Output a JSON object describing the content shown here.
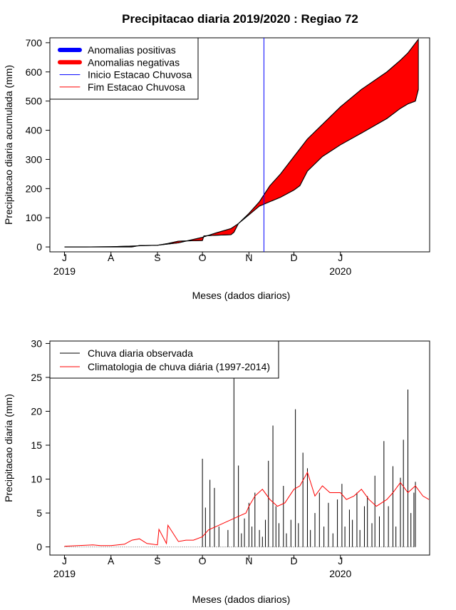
{
  "title": "Precipitacao diaria 2019/2020 : Regiao 72",
  "colors": {
    "positive": "#0000ff",
    "negative": "#ff0000",
    "start_line": "#0000ff",
    "end_line": "#ff0000",
    "obs_bars": "#000000",
    "climatology": "#ff0000"
  },
  "chart_data": [
    {
      "type": "area",
      "ylabel": "Precipitacao diaria acumulada (mm)",
      "xlabel": "Meses (dados diarios)",
      "ylim": [
        0,
        700
      ],
      "yticks": [
        0,
        100,
        200,
        300,
        400,
        500,
        600,
        700
      ],
      "xlim": [
        "2019-07-01",
        "2020-02-29"
      ],
      "xticks": [
        "J",
        "A",
        "S",
        "O",
        "N",
        "D",
        "J"
      ],
      "xtick_dates": [
        "2019-07-01",
        "2019-08-01",
        "2019-09-01",
        "2019-10-01",
        "2019-11-01",
        "2019-12-01",
        "2020-01-01"
      ],
      "year_labels": [
        {
          "text": "2019",
          "date": "2019-07-01"
        },
        {
          "text": "2020",
          "date": "2020-01-01"
        }
      ],
      "legend": {
        "position": "top-left",
        "entries": [
          "Anomalias positivas",
          "Anomalias negativas",
          "Inicio Estacao Chuvosa",
          "Fim Estacao Chuvosa"
        ]
      },
      "onset_date": "2019-11-11",
      "series": [
        {
          "name": "Climatologia acumulada",
          "dates": [
            "2019-07-01",
            "2019-07-15",
            "2019-08-01",
            "2019-08-15",
            "2019-09-01",
            "2019-09-15",
            "2019-10-01",
            "2019-10-10",
            "2019-10-20",
            "2019-10-25",
            "2019-11-01",
            "2019-11-08",
            "2019-11-15",
            "2019-11-22",
            "2019-12-01",
            "2019-12-10",
            "2019-12-20",
            "2020-01-01",
            "2020-01-15",
            "2020-02-01",
            "2020-02-10",
            "2020-02-15",
            "2020-02-22"
          ],
          "values": [
            0,
            0,
            1,
            3,
            6,
            14,
            33,
            48,
            63,
            80,
            115,
            155,
            210,
            250,
            310,
            370,
            420,
            480,
            540,
            600,
            640,
            665,
            712
          ]
        },
        {
          "name": "Chuva observada acumulada",
          "dates": [
            "2019-07-01",
            "2019-07-15",
            "2019-08-01",
            "2019-08-15",
            "2019-08-20",
            "2019-09-01",
            "2019-09-08",
            "2019-09-15",
            "2019-10-01",
            "2019-10-02",
            "2019-10-10",
            "2019-10-20",
            "2019-10-22",
            "2019-10-25",
            "2019-11-01",
            "2019-11-08",
            "2019-11-15",
            "2019-11-22",
            "2019-12-01",
            "2019-12-05",
            "2019-12-10",
            "2019-12-20",
            "2020-01-01",
            "2020-01-15",
            "2020-02-01",
            "2020-02-10",
            "2020-02-15",
            "2020-02-20",
            "2020-02-22"
          ],
          "values": [
            0,
            0,
            0,
            0,
            5,
            6,
            12,
            20,
            22,
            38,
            40,
            42,
            50,
            80,
            110,
            140,
            155,
            170,
            195,
            210,
            260,
            310,
            350,
            390,
            440,
            475,
            490,
            500,
            540
          ]
        }
      ]
    },
    {
      "type": "bar",
      "ylabel": "Precipitacao diaria (mm)",
      "xlabel": "Meses (dados diarios)",
      "ylim": [
        0,
        30
      ],
      "yticks": [
        0,
        5,
        10,
        15,
        20,
        25,
        30
      ],
      "xlim": [
        "2019-07-01",
        "2020-02-29"
      ],
      "xticks": [
        "J",
        "A",
        "S",
        "O",
        "N",
        "D",
        "J"
      ],
      "xtick_dates": [
        "2019-07-01",
        "2019-08-01",
        "2019-09-01",
        "2019-10-01",
        "2019-11-01",
        "2019-12-01",
        "2020-01-01"
      ],
      "year_labels": [
        {
          "text": "2019",
          "date": "2019-07-01"
        },
        {
          "text": "2020",
          "date": "2020-01-01"
        }
      ],
      "legend": {
        "position": "top-left",
        "entries": [
          "Chuva diaria observada",
          "Climatologia de chuva diária (1997-2014)"
        ]
      },
      "series": [
        {
          "name": "Chuva diaria observada",
          "dates": [
            "2019-10-01",
            "2019-10-03",
            "2019-10-06",
            "2019-10-09",
            "2019-10-12",
            "2019-10-18",
            "2019-10-22",
            "2019-10-25",
            "2019-10-27",
            "2019-10-29",
            "2019-11-01",
            "2019-11-03",
            "2019-11-05",
            "2019-11-08",
            "2019-11-10",
            "2019-11-12",
            "2019-11-14",
            "2019-11-17",
            "2019-11-19",
            "2019-11-21",
            "2019-11-24",
            "2019-11-26",
            "2019-11-29",
            "2019-12-02",
            "2019-12-04",
            "2019-12-07",
            "2019-12-10",
            "2019-12-12",
            "2019-12-15",
            "2019-12-18",
            "2019-12-21",
            "2019-12-24",
            "2019-12-27",
            "2019-12-30",
            "2020-01-02",
            "2020-01-04",
            "2020-01-07",
            "2020-01-09",
            "2020-01-12",
            "2020-01-14",
            "2020-01-17",
            "2020-01-19",
            "2020-01-22",
            "2020-01-24",
            "2020-01-27",
            "2020-01-30",
            "2020-02-02",
            "2020-02-05",
            "2020-02-07",
            "2020-02-10",
            "2020-02-12",
            "2020-02-15",
            "2020-02-17",
            "2020-02-19",
            "2020-02-20"
          ],
          "values": [
            13,
            5.8,
            9.9,
            8.7,
            3.0,
            2.5,
            32,
            12,
            2.0,
            4.2,
            6.5,
            3.0,
            8.0,
            2.5,
            1.5,
            4.0,
            12.7,
            17.9,
            6.0,
            3.5,
            9.0,
            2.0,
            4.0,
            20.3,
            3.5,
            13.9,
            11.6,
            2.5,
            5.0,
            8.0,
            3.0,
            6.5,
            2.0,
            7.0,
            9.3,
            3.0,
            5.5,
            4.0,
            8.0,
            2.5,
            6.0,
            7.5,
            3.5,
            10.5,
            4.5,
            15.6,
            6.0,
            11.9,
            3.0,
            10.2,
            15.8,
            23.2,
            5.0,
            8.0,
            9.6
          ]
        },
        {
          "name": "Climatologia de chuva diária (1997-2014)",
          "dates": [
            "2019-07-01",
            "2019-07-10",
            "2019-07-20",
            "2019-07-25",
            "2019-08-01",
            "2019-08-10",
            "2019-08-15",
            "2019-08-20",
            "2019-08-25",
            "2019-09-01",
            "2019-09-02",
            "2019-09-07",
            "2019-09-08",
            "2019-09-15",
            "2019-09-20",
            "2019-09-25",
            "2019-10-01",
            "2019-10-05",
            "2019-10-10",
            "2019-10-15",
            "2019-10-20",
            "2019-10-25",
            "2019-10-30",
            "2019-11-01",
            "2019-11-05",
            "2019-11-10",
            "2019-11-15",
            "2019-11-20",
            "2019-11-25",
            "2019-12-01",
            "2019-12-05",
            "2019-12-10",
            "2019-12-15",
            "2019-12-20",
            "2019-12-25",
            "2020-01-01",
            "2020-01-05",
            "2020-01-10",
            "2020-01-15",
            "2020-01-20",
            "2020-01-25",
            "2020-02-01",
            "2020-02-05",
            "2020-02-10",
            "2020-02-15",
            "2020-02-20",
            "2020-02-25",
            "2020-02-29"
          ],
          "values": [
            0.1,
            0.2,
            0.3,
            0.2,
            0.2,
            0.4,
            1.0,
            1.2,
            0.5,
            0.3,
            2.6,
            0.5,
            3.2,
            0.8,
            1.0,
            1.0,
            1.5,
            2.5,
            3.0,
            3.5,
            4.0,
            4.5,
            5.0,
            6.0,
            7.5,
            8.5,
            7.0,
            6.0,
            6.5,
            8.5,
            9.0,
            11.0,
            7.5,
            9.0,
            8.0,
            8.0,
            7.0,
            7.5,
            8.5,
            7.0,
            6.0,
            7.0,
            8.0,
            9.5,
            8.0,
            9.0,
            7.5,
            7.0
          ]
        }
      ]
    }
  ]
}
